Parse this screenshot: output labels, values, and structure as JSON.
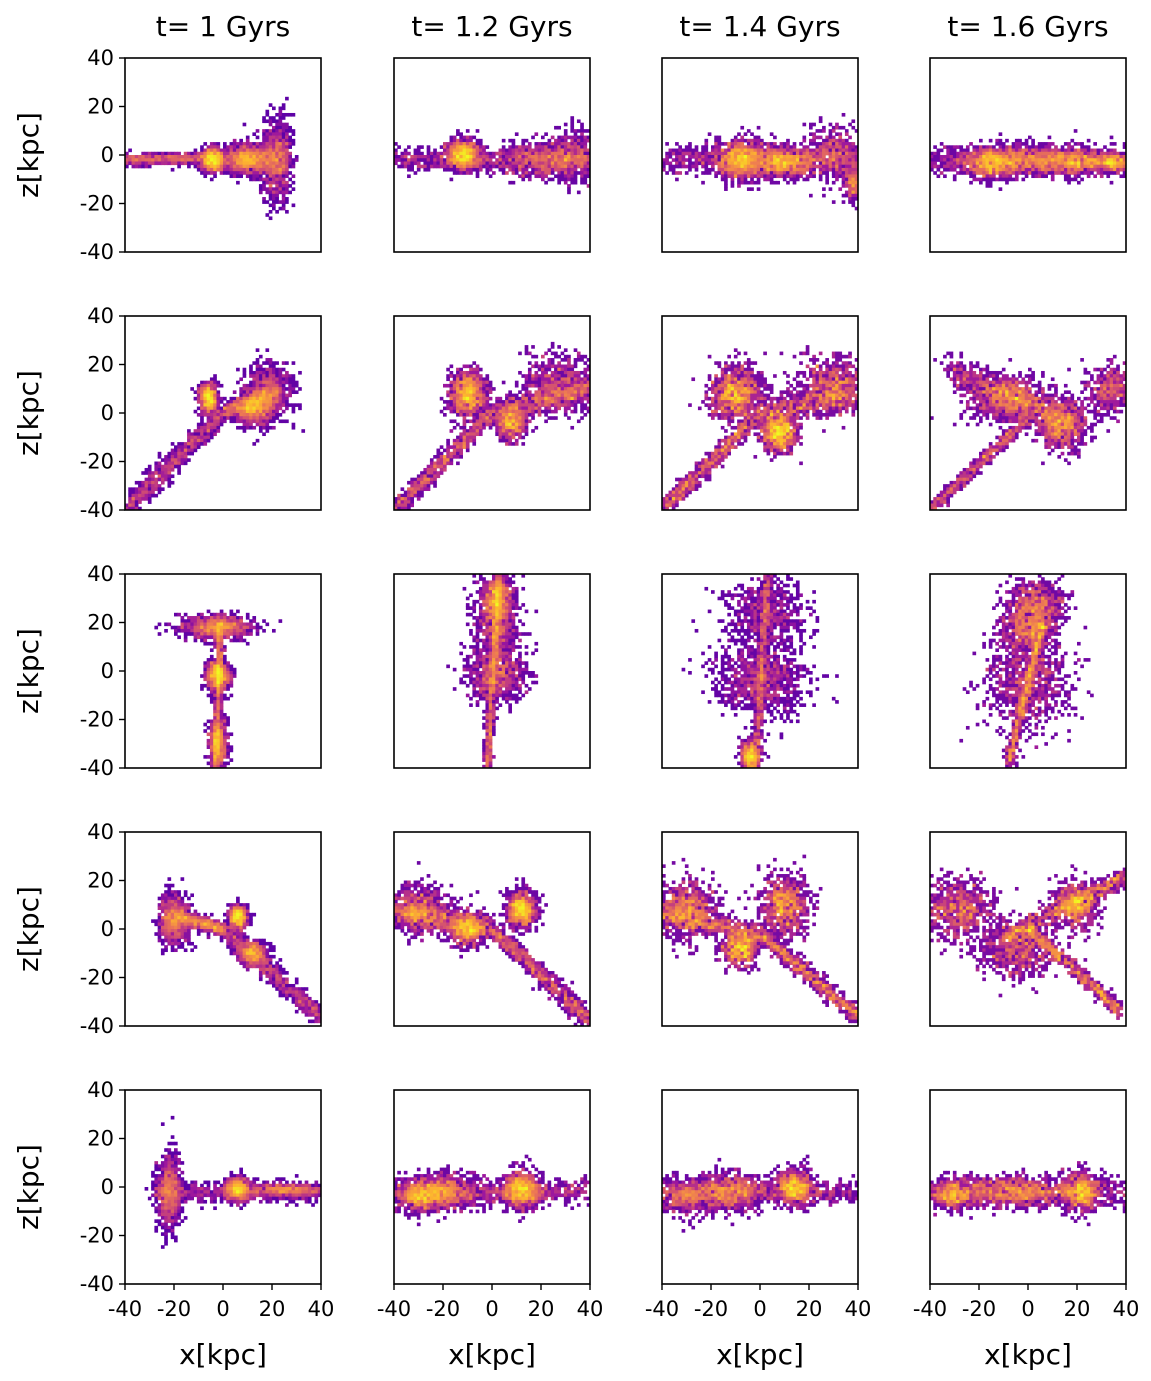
{
  "figure": {
    "colormap": [
      "#0d0887",
      "#5c01a6",
      "#9c179e",
      "#cc4778",
      "#ed7953",
      "#fdb42f",
      "#f0f921"
    ]
  },
  "chart_data": {
    "type": "heatmap",
    "layout": "grid-5x4",
    "column_titles": [
      "t= 1 Gyrs",
      "t= 1.2 Gyrs",
      "t= 1.4 Gyrs",
      "t= 1.6 Gyrs"
    ],
    "xlabel": "x[kpc]",
    "ylabel": "z[kpc]",
    "xlim": [
      -40,
      40
    ],
    "ylim": [
      -40,
      40
    ],
    "x_ticks": [
      -40,
      -20,
      0,
      20,
      40
    ],
    "y_ticks": [
      -40,
      -20,
      0,
      20,
      40
    ],
    "x_tick_labels": [
      "-40",
      "-20",
      "0",
      "20",
      "40"
    ],
    "y_tick_labels": [
      "-40",
      "-20",
      "0",
      "20",
      "40"
    ],
    "grid": false,
    "panels": [
      [
        {
          "streams": [
            [
              -40,
              -2,
              -5,
              -1,
              1.2,
              0.7
            ],
            [
              5,
              -1,
              25,
              -2,
              3.5,
              0.9
            ]
          ],
          "blobs": [
            [
              -4,
              -2,
              4,
              4,
              0.8
            ],
            [
              22,
              -2,
              5,
              14,
              0.55
            ],
            [
              10,
              -2,
              8,
              4,
              0.6
            ]
          ]
        },
        {
          "streams": [
            [
              -40,
              -2,
              40,
              -2,
              2.5,
              0.8
            ]
          ],
          "blobs": [
            [
              -12,
              0,
              6,
              5,
              0.7
            ],
            [
              20,
              -2,
              14,
              6,
              0.45
            ],
            [
              34,
              0,
              8,
              9,
              0.3
            ]
          ]
        },
        {
          "streams": [
            [
              -40,
              -2,
              40,
              -2,
              3,
              0.8
            ]
          ],
          "blobs": [
            [
              -8,
              -2,
              9,
              7,
              0.75
            ],
            [
              10,
              -3,
              10,
              5,
              0.6
            ],
            [
              30,
              0,
              10,
              10,
              0.3
            ],
            [
              38,
              -12,
              3,
              6,
              0.15
            ]
          ]
        },
        {
          "streams": [
            [
              -40,
              -2,
              40,
              -2,
              3,
              0.75
            ]
          ],
          "blobs": [
            [
              -2,
              -2,
              22,
              5,
              0.8
            ],
            [
              -15,
              -4,
              8,
              5,
              0.45
            ],
            [
              20,
              -3,
              10,
              4,
              0.4
            ],
            [
              35,
              -3,
              6,
              3,
              0.3
            ]
          ]
        }
      ],
      [
        {
          "streams": [
            [
              -40,
              -40,
              -2,
              -2,
              2.2,
              0.85
            ],
            [
              0,
              0,
              22,
              8,
              2,
              0.7
            ]
          ],
          "blobs": [
            [
              -6,
              6,
              3,
              5,
              0.6
            ],
            [
              18,
              8,
              8,
              10,
              0.6
            ],
            [
              12,
              2,
              6,
              5,
              0.5
            ]
          ]
        },
        {
          "streams": [
            [
              -40,
              -40,
              0,
              0,
              2,
              0.8
            ],
            [
              0,
              0,
              40,
              10,
              2.5,
              0.7
            ]
          ],
          "blobs": [
            [
              -10,
              8,
              6,
              8,
              0.75
            ],
            [
              28,
              12,
              14,
              10,
              0.5
            ],
            [
              8,
              -4,
              5,
              6,
              0.4
            ]
          ]
        },
        {
          "streams": [
            [
              -40,
              -40,
              0,
              0,
              2,
              0.7
            ],
            [
              0,
              0,
              40,
              8,
              3,
              0.6
            ]
          ],
          "blobs": [
            [
              -10,
              8,
              9,
              9,
              0.7
            ],
            [
              8,
              -8,
              6,
              7,
              0.55
            ],
            [
              30,
              12,
              12,
              10,
              0.45
            ]
          ]
        },
        {
          "streams": [
            [
              -40,
              -40,
              0,
              -2,
              1.5,
              0.55
            ],
            [
              -32,
              18,
              12,
              -2,
              3,
              0.7
            ]
          ],
          "blobs": [
            [
              -8,
              6,
              14,
              8,
              0.65
            ],
            [
              14,
              -5,
              8,
              8,
              0.6
            ],
            [
              34,
              10,
              9,
              9,
              0.35
            ]
          ]
        }
      ],
      [
        {
          "streams": [
            [
              -3,
              -40,
              -1,
              22,
              1.2,
              0.85
            ]
          ],
          "blobs": [
            [
              -2,
              18,
              12,
              4,
              0.7
            ],
            [
              -2,
              -2,
              4,
              5,
              0.6
            ],
            [
              -2,
              -30,
              3,
              8,
              0.5
            ]
          ]
        },
        {
          "streams": [
            [
              -2,
              -40,
              3,
              40,
              1.4,
              0.9
            ]
          ],
          "blobs": [
            [
              2,
              20,
              8,
              14,
              0.55
            ],
            [
              2,
              -2,
              10,
              9,
              0.5
            ],
            [
              2,
              30,
              5,
              8,
              0.45
            ]
          ]
        },
        {
          "streams": [
            [
              -2,
              -40,
              3,
              40,
              1.5,
              0.8
            ]
          ],
          "blobs": [
            [
              0,
              -4,
              16,
              12,
              0.65
            ],
            [
              2,
              24,
              14,
              12,
              0.45
            ],
            [
              -4,
              -35,
              3,
              5,
              0.45
            ]
          ]
        },
        {
          "streams": [
            [
              -8,
              -38,
              6,
              20,
              1.5,
              0.8
            ]
          ],
          "blobs": [
            [
              0,
              -4,
              14,
              16,
              0.6
            ],
            [
              4,
              28,
              10,
              9,
              0.45
            ],
            [
              0,
              18,
              9,
              8,
              0.45
            ]
          ]
        }
      ],
      [
        {
          "streams": [
            [
              -18,
              5,
              0,
              0,
              1.5,
              0.75
            ],
            [
              0,
              0,
              40,
              -36,
              2,
              0.85
            ]
          ],
          "blobs": [
            [
              -20,
              4,
              5,
              8,
              0.65
            ],
            [
              6,
              5,
              3,
              4,
              0.55
            ],
            [
              12,
              -10,
              5,
              4,
              0.4
            ]
          ]
        },
        {
          "streams": [
            [
              -40,
              8,
              0,
              0,
              2.5,
              0.75
            ],
            [
              0,
              0,
              40,
              -38,
              2,
              0.85
            ]
          ],
          "blobs": [
            [
              -30,
              8,
              10,
              8,
              0.5
            ],
            [
              -10,
              0,
              6,
              6,
              0.5
            ],
            [
              12,
              8,
              5,
              6,
              0.6
            ]
          ]
        },
        {
          "streams": [
            [
              -40,
              6,
              0,
              -2,
              2,
              0.55
            ],
            [
              0,
              -2,
              40,
              -36,
              1.8,
              0.75
            ]
          ],
          "blobs": [
            [
              -30,
              8,
              10,
              10,
              0.55
            ],
            [
              10,
              10,
              8,
              10,
              0.6
            ],
            [
              -8,
              -8,
              6,
              6,
              0.45
            ]
          ]
        },
        {
          "streams": [
            [
              -10,
              -4,
              40,
              22,
              2,
              0.7
            ],
            [
              0,
              0,
              38,
              -34,
              1.5,
              0.6
            ]
          ],
          "blobs": [
            [
              -28,
              8,
              12,
              10,
              0.5
            ],
            [
              -4,
              -8,
              14,
              10,
              0.45
            ],
            [
              20,
              10,
              8,
              8,
              0.4
            ]
          ]
        }
      ],
      [
        {
          "streams": [
            [
              -28,
              -2,
              40,
              -2,
              2,
              0.8
            ]
          ],
          "blobs": [
            [
              -22,
              -2,
              4,
              12,
              0.65
            ],
            [
              6,
              -1,
              4,
              4,
              0.65
            ],
            [
              25,
              -1,
              12,
              2,
              0.4
            ]
          ]
        },
        {
          "streams": [
            [
              -40,
              -2,
              40,
              -2,
              2.5,
              0.8
            ]
          ],
          "blobs": [
            [
              -20,
              -2,
              12,
              6,
              0.6
            ],
            [
              12,
              -1,
              6,
              6,
              0.65
            ],
            [
              -30,
              -4,
              8,
              5,
              0.4
            ]
          ]
        },
        {
          "streams": [
            [
              -40,
              -2,
              40,
              -2,
              2.5,
              0.75
            ]
          ],
          "blobs": [
            [
              -12,
              -2,
              12,
              6,
              0.55
            ],
            [
              14,
              0,
              6,
              6,
              0.6
            ],
            [
              -30,
              -4,
              10,
              6,
              0.35
            ]
          ]
        },
        {
          "streams": [
            [
              -40,
              -2,
              40,
              -2,
              3,
              0.75
            ]
          ],
          "blobs": [
            [
              -5,
              -2,
              18,
              5,
              0.65
            ],
            [
              22,
              -2,
              6,
              7,
              0.5
            ],
            [
              -30,
              -3,
              8,
              5,
              0.4
            ]
          ]
        }
      ]
    ]
  }
}
